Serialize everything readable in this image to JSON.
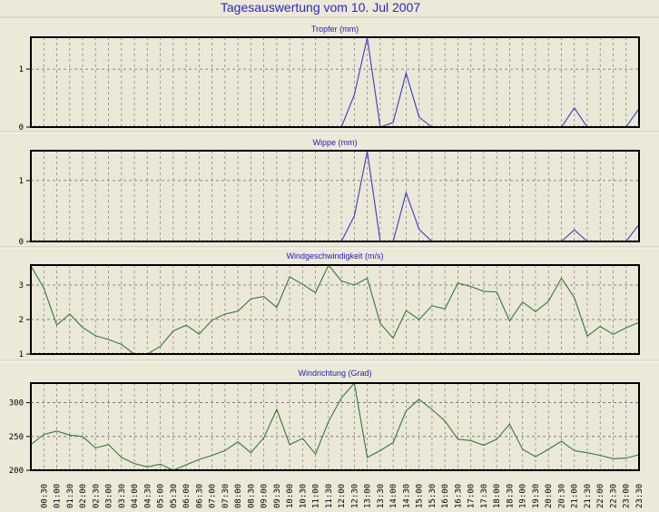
{
  "title": "Tagesauswertung vom 10. Jul 2007",
  "colors": {
    "background": "#ece9d8",
    "title": "#2828c8",
    "rain_line": "#3a3acc",
    "wind_line": "#2f7d2f",
    "grid": "#808080"
  },
  "x_labels": [
    "00:30",
    "01:00",
    "01:30",
    "02:00",
    "02:30",
    "03:00",
    "03:30",
    "04:00",
    "04:30",
    "05:00",
    "05:30",
    "06:00",
    "06:30",
    "07:00",
    "07:30",
    "08:00",
    "08:30",
    "09:00",
    "09:30",
    "10:00",
    "10:30",
    "11:00",
    "11:30",
    "12:00",
    "12:30",
    "13:00",
    "13:30",
    "14:00",
    "14:30",
    "15:00",
    "15:30",
    "16:00",
    "16:30",
    "17:00",
    "17:30",
    "18:00",
    "18:30",
    "19:00",
    "19:30",
    "20:00",
    "20:30",
    "21:00",
    "21:30",
    "22:00",
    "22:30",
    "23:00",
    "23:30"
  ],
  "chart_data": [
    {
      "type": "line",
      "title": "Tropfer (mm)",
      "x": "00:00-23:30 every 30 min",
      "ylim": [
        0,
        1.55
      ],
      "yticks": [
        0,
        1
      ],
      "grid": true,
      "color": "#3a3acc",
      "values": [
        0,
        0,
        0,
        0,
        0,
        0,
        0,
        0,
        0,
        0,
        0,
        0,
        0,
        0,
        0,
        0,
        0,
        0,
        0,
        0,
        0,
        0,
        0,
        0,
        0,
        0.56,
        1.54,
        0,
        0.08,
        0.93,
        0.17,
        0,
        0,
        0,
        0,
        0,
        0,
        0,
        0,
        0,
        0,
        0,
        0.33,
        0,
        0,
        0,
        0,
        0.32
      ]
    },
    {
      "type": "line",
      "title": "Wippe (mm)",
      "x": "00:00-23:30 every 30 min",
      "ylim": [
        0,
        1.49
      ],
      "yticks": [
        0,
        1
      ],
      "grid": true,
      "color": "#3a3acc",
      "values": [
        0,
        0,
        0,
        0,
        0,
        0,
        0,
        0,
        0,
        0,
        0,
        0,
        0,
        0,
        0,
        0,
        0,
        0,
        0,
        0,
        0,
        0,
        0,
        0,
        0,
        0.42,
        1.48,
        0,
        0,
        0.8,
        0.2,
        0,
        0,
        0,
        0,
        0,
        0,
        0,
        0,
        0,
        0,
        0,
        0.19,
        0,
        0,
        0,
        0,
        0.28
      ]
    },
    {
      "type": "line",
      "title": "Windgeschwindigkeit (m/s)",
      "x": "00:00-23:30 every 30 min",
      "ylim": [
        1,
        3.58
      ],
      "yticks": [
        1,
        2,
        3
      ],
      "grid": true,
      "color": "#2f7d2f",
      "values": [
        3.56,
        2.91,
        1.84,
        2.16,
        1.77,
        1.53,
        1.42,
        1.28,
        1.0,
        1.0,
        1.22,
        1.67,
        1.84,
        1.58,
        1.98,
        2.16,
        2.24,
        2.6,
        2.67,
        2.35,
        3.24,
        3.02,
        2.78,
        3.58,
        3.12,
        3.0,
        3.2,
        1.89,
        1.46,
        2.26,
        2.0,
        2.4,
        2.31,
        3.06,
        2.96,
        2.82,
        2.8,
        1.96,
        2.51,
        2.23,
        2.53,
        3.2,
        2.64,
        1.52,
        1.8,
        1.57,
        1.76,
        1.92
      ]
    },
    {
      "type": "line",
      "title": "Windrichtung (Grad)",
      "x": "00:00-23:30 every 30 min",
      "ylim": [
        200,
        329
      ],
      "yticks": [
        200,
        250,
        300
      ],
      "grid": true,
      "color": "#2f7d2f",
      "values": [
        238,
        253,
        258,
        252,
        250,
        233,
        238,
        219,
        210,
        205,
        209,
        200,
        208,
        216,
        222,
        229,
        242,
        226,
        248,
        290,
        238,
        247,
        224,
        272,
        307,
        329,
        219,
        229,
        241,
        288,
        305,
        290,
        273,
        246,
        244,
        237,
        246,
        268,
        231,
        220,
        231,
        243,
        229,
        226,
        222,
        217,
        218,
        223
      ]
    }
  ]
}
